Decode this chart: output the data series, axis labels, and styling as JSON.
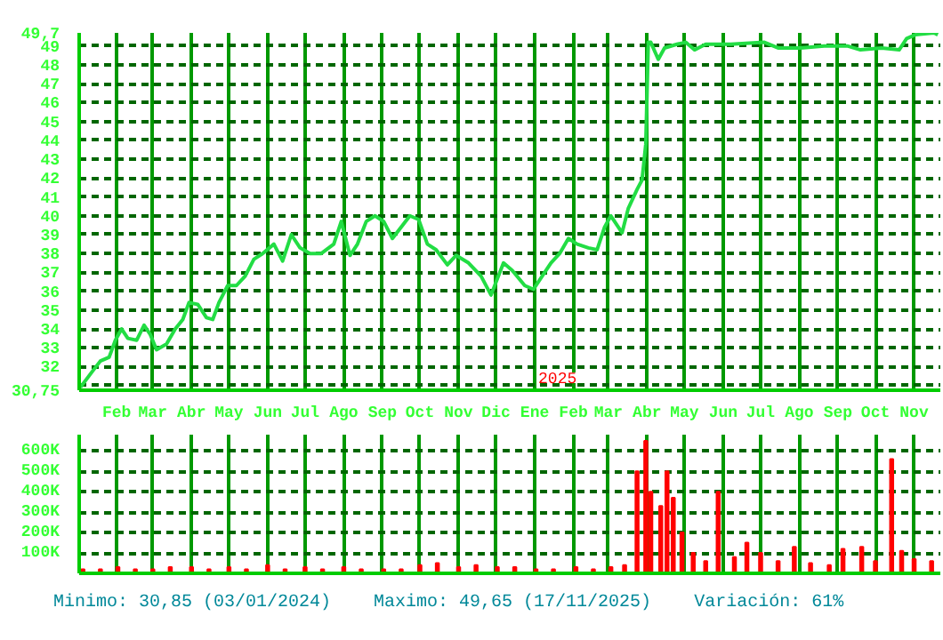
{
  "chart_data": [
    {
      "type": "line",
      "xlim": [
        "2024-01-02",
        "2025-11-22"
      ],
      "ylim": [
        30.75,
        49.7
      ],
      "xticks": [
        {
          "value": "2024-02-01",
          "label": "Feb"
        },
        {
          "value": "2024-03-01",
          "label": "Mar"
        },
        {
          "value": "2024-04-01",
          "label": "Abr"
        },
        {
          "value": "2024-05-01",
          "label": "May"
        },
        {
          "value": "2024-06-01",
          "label": "Jun"
        },
        {
          "value": "2024-07-01",
          "label": "Jul"
        },
        {
          "value": "2024-08-01",
          "label": "Ago"
        },
        {
          "value": "2024-09-01",
          "label": "Sep"
        },
        {
          "value": "2024-10-01",
          "label": "Oct"
        },
        {
          "value": "2024-11-01",
          "label": "Nov"
        },
        {
          "value": "2024-12-01",
          "label": "Dic"
        },
        {
          "value": "2025-01-01",
          "label": "Ene"
        },
        {
          "value": "2025-02-01",
          "label": "Feb"
        },
        {
          "value": "2025-03-01",
          "label": "Mar"
        },
        {
          "value": "2025-04-01",
          "label": "Abr"
        },
        {
          "value": "2025-05-01",
          "label": "May"
        },
        {
          "value": "2025-06-01",
          "label": "Jun"
        },
        {
          "value": "2025-07-01",
          "label": "Jul"
        },
        {
          "value": "2025-08-01",
          "label": "Ago"
        },
        {
          "value": "2025-09-01",
          "label": "Sep"
        },
        {
          "value": "2025-10-01",
          "label": "Oct"
        },
        {
          "value": "2025-11-01",
          "label": "Nov"
        }
      ],
      "yticks": [
        {
          "value": 30.75,
          "label": "30,75"
        },
        {
          "value": 31,
          "label": null
        },
        32,
        33,
        34,
        35,
        36,
        37,
        38,
        39,
        40,
        41,
        42,
        43,
        44,
        45,
        46,
        47,
        48,
        49,
        {
          "value": 49.7,
          "label": "49,7"
        }
      ],
      "grid": true,
      "annotations": [
        "2025"
      ],
      "series": [
        {
          "color": "#22dd44",
          "x": [
            "2024-01-03",
            "2024-01-12",
            "2024-01-19",
            "2024-01-26",
            "2024-01-31",
            "2024-02-05",
            "2024-02-10",
            "2024-02-17",
            "2024-02-23",
            "2024-02-28",
            "2024-03-04",
            "2024-03-12",
            "2024-03-19",
            "2024-03-25",
            "2024-03-30",
            "2024-04-06",
            "2024-04-13",
            "2024-04-18",
            "2024-04-23",
            "2024-04-30",
            "2024-05-07",
            "2024-05-14",
            "2024-05-21",
            "2024-05-28",
            "2024-06-06",
            "2024-06-13",
            "2024-06-20",
            "2024-06-27",
            "2024-07-05",
            "2024-07-14",
            "2024-07-24",
            "2024-07-30",
            "2024-08-06",
            "2024-08-12",
            "2024-08-19",
            "2024-08-26",
            "2024-09-02",
            "2024-09-09",
            "2024-09-16",
            "2024-09-23",
            "2024-09-30",
            "2024-10-07",
            "2024-10-14",
            "2024-10-23",
            "2024-10-30",
            "2024-11-09",
            "2024-11-19",
            "2024-11-27",
            "2024-12-07",
            "2024-12-14",
            "2024-12-24",
            "2024-12-31",
            "2025-01-07",
            "2025-01-14",
            "2025-01-21",
            "2025-01-28",
            "2025-02-04",
            "2025-02-13",
            "2025-02-20",
            "2025-02-26",
            "2025-03-03",
            "2025-03-12",
            "2025-03-17",
            "2025-03-24",
            "2025-03-28",
            "2025-03-31",
            "2025-04-02",
            "2025-04-04",
            "2025-04-10",
            "2025-04-15",
            "2025-04-25",
            "2025-05-02",
            "2025-05-09",
            "2025-05-18",
            "2025-06-07",
            "2025-07-04",
            "2025-07-15",
            "2025-08-02",
            "2025-08-21",
            "2025-09-09",
            "2025-09-19",
            "2025-10-06",
            "2025-10-20",
            "2025-10-26",
            "2025-11-02",
            "2025-11-17",
            "2025-11-20"
          ],
          "values": [
            30.9,
            31.7,
            32.3,
            32.5,
            33.4,
            34.0,
            33.5,
            33.4,
            34.2,
            33.7,
            32.9,
            33.2,
            34.0,
            34.5,
            35.4,
            35.3,
            34.6,
            34.5,
            35.4,
            36.3,
            36.3,
            36.8,
            37.7,
            38.0,
            38.5,
            37.6,
            39.0,
            38.3,
            38.0,
            38.0,
            38.5,
            39.7,
            37.9,
            38.5,
            39.7,
            40.0,
            39.7,
            38.8,
            39.4,
            40.0,
            39.8,
            38.5,
            38.2,
            37.4,
            37.9,
            37.5,
            36.8,
            35.8,
            37.5,
            37.1,
            36.3,
            36.1,
            36.8,
            37.5,
            38.0,
            38.8,
            38.5,
            38.3,
            38.2,
            39.4,
            40.0,
            39.1,
            40.4,
            41.4,
            41.9,
            43.8,
            49.2,
            49.2,
            48.3,
            48.9,
            49.1,
            49.2,
            48.8,
            49.1,
            49.1,
            49.2,
            48.9,
            48.9,
            49.0,
            49.0,
            48.8,
            48.9,
            48.8,
            49.4,
            49.6,
            49.7,
            49.6
          ]
        }
      ]
    },
    {
      "type": "bar",
      "xlim": [
        "2024-01-02",
        "2025-11-22"
      ],
      "ylim": [
        0,
        680000
      ],
      "xticks": [
        {
          "value": "2024-02-01",
          "label": null
        },
        {
          "value": "2024-03-01",
          "label": null
        },
        {
          "value": "2024-04-01",
          "label": null
        },
        {
          "value": "2024-05-01",
          "label": null
        },
        {
          "value": "2024-06-01",
          "label": null
        },
        {
          "value": "2024-07-01",
          "label": null
        },
        {
          "value": "2024-08-01",
          "label": null
        },
        {
          "value": "2024-09-01",
          "label": null
        },
        {
          "value": "2024-10-01",
          "label": null
        },
        {
          "value": "2024-11-01",
          "label": null
        },
        {
          "value": "2024-12-01",
          "label": null
        },
        {
          "value": "2025-01-01",
          "label": null
        },
        {
          "value": "2025-02-01",
          "label": null
        },
        {
          "value": "2025-03-01",
          "label": null
        },
        {
          "value": "2025-04-01",
          "label": null
        },
        {
          "value": "2025-05-01",
          "label": null
        },
        {
          "value": "2025-06-01",
          "label": null
        },
        {
          "value": "2025-07-01",
          "label": null
        },
        {
          "value": "2025-08-01",
          "label": null
        },
        {
          "value": "2025-09-01",
          "label": null
        },
        {
          "value": "2025-10-01",
          "label": null
        },
        {
          "value": "2025-11-01",
          "label": null
        }
      ],
      "yticks": [
        {
          "value": 100000,
          "label": "100K"
        },
        {
          "value": 200000,
          "label": "200K"
        },
        {
          "value": 300000,
          "label": "300K"
        },
        {
          "value": 400000,
          "label": "400K"
        },
        {
          "value": 500000,
          "label": "500K"
        },
        {
          "value": 600000,
          "label": "600K"
        }
      ],
      "tick_labels": "y",
      "grid": true,
      "annotations": [
        "Minimo: 30,85 (03/01/2024)",
        "Maximo: 49,65 (17/11/2025)",
        "Variación: 61%"
      ],
      "series": [
        {
          "color": "#ff0000",
          "x": [
            "2024-01-05",
            "2024-01-19",
            "2024-02-02",
            "2024-02-16",
            "2024-03-01",
            "2024-03-15",
            "2024-04-01",
            "2024-04-15",
            "2024-05-01",
            "2024-05-15",
            "2024-06-01",
            "2024-06-15",
            "2024-07-01",
            "2024-07-15",
            "2024-08-01",
            "2024-08-15",
            "2024-09-02",
            "2024-09-16",
            "2024-10-01",
            "2024-10-15",
            "2024-11-01",
            "2024-11-15",
            "2024-12-02",
            "2024-12-16",
            "2025-01-02",
            "2025-01-16",
            "2025-02-03",
            "2025-02-17",
            "2025-03-03",
            "2025-03-14",
            "2025-03-24",
            "2025-03-31",
            "2025-04-04",
            "2025-04-12",
            "2025-04-17",
            "2025-04-22",
            "2025-04-29",
            "2025-05-08",
            "2025-05-18",
            "2025-05-28",
            "2025-06-10",
            "2025-06-20",
            "2025-07-01",
            "2025-07-15",
            "2025-07-28",
            "2025-08-10",
            "2025-08-25",
            "2025-09-05",
            "2025-09-20",
            "2025-10-01",
            "2025-10-14",
            "2025-10-22",
            "2025-11-01",
            "2025-11-15"
          ],
          "values": [
            20000,
            20000,
            30000,
            20000,
            20000,
            30000,
            30000,
            20000,
            30000,
            20000,
            40000,
            20000,
            30000,
            20000,
            30000,
            20000,
            20000,
            20000,
            40000,
            50000,
            30000,
            40000,
            30000,
            30000,
            20000,
            20000,
            30000,
            20000,
            30000,
            40000,
            500000,
            650000,
            400000,
            330000,
            500000,
            370000,
            200000,
            100000,
            60000,
            400000,
            80000,
            150000,
            100000,
            60000,
            130000,
            50000,
            40000,
            120000,
            130000,
            60000,
            560000,
            110000,
            70000,
            60000
          ]
        }
      ]
    }
  ]
}
